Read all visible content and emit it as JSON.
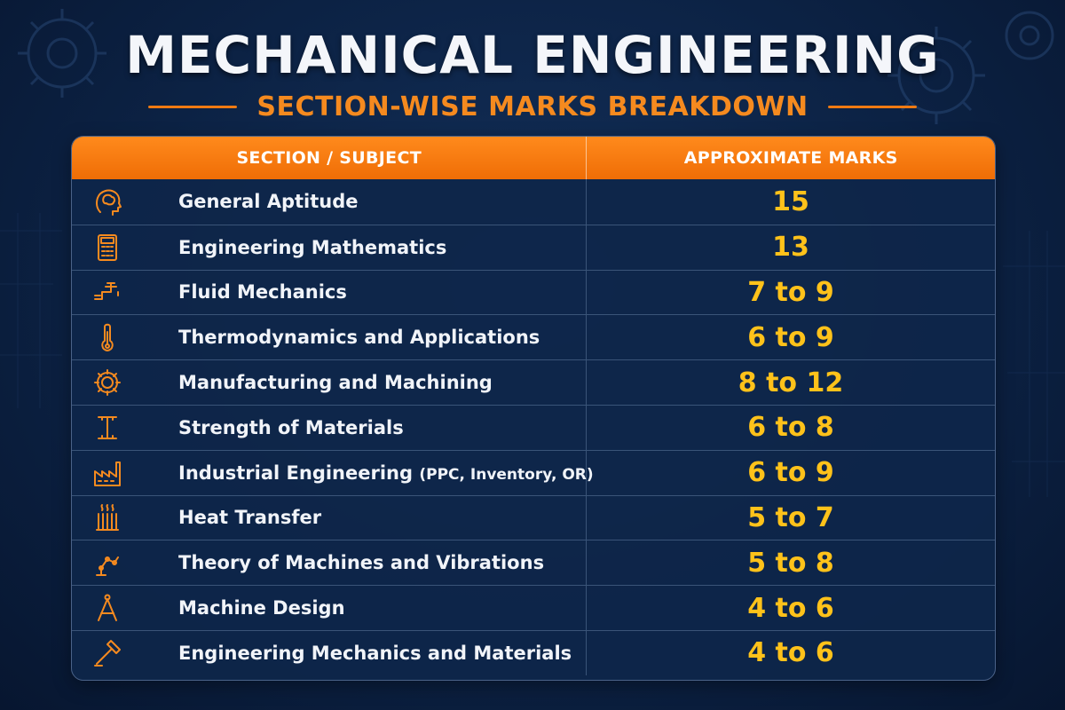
{
  "title": "MECHANICAL ENGINEERING",
  "subtitle": "SECTION-WISE MARKS BREAKDOWN",
  "table": {
    "headers": [
      "SECTION / SUBJECT",
      "APPROXIMATE MARKS"
    ],
    "rows": [
      {
        "icon": "brain-head-icon",
        "subject": "General Aptitude",
        "note": "",
        "marks": "15"
      },
      {
        "icon": "calculator-icon",
        "subject": "Engineering Mathematics",
        "note": "",
        "marks": "13"
      },
      {
        "icon": "pipe-faucet-icon",
        "subject": "Fluid Mechanics",
        "note": "",
        "marks": "7 to 9"
      },
      {
        "icon": "thermometer-icon",
        "subject": "Thermodynamics and Applications",
        "note": "",
        "marks": "6 to 9"
      },
      {
        "icon": "gear-icon",
        "subject": "Manufacturing and Machining",
        "note": "",
        "marks": "8 to 12"
      },
      {
        "icon": "i-beam-icon",
        "subject": "Strength of Materials",
        "note": "",
        "marks": "6 to 8"
      },
      {
        "icon": "factory-icon",
        "subject": "Industrial Engineering",
        "note": "(PPC, Inventory, OR)",
        "marks": "6 to 9"
      },
      {
        "icon": "radiator-icon",
        "subject": "Heat Transfer",
        "note": "",
        "marks": "5 to 7"
      },
      {
        "icon": "robotic-arm-icon",
        "subject": "Theory of Machines and Vibrations",
        "note": "",
        "marks": "5 to 8"
      },
      {
        "icon": "compass-icon",
        "subject": "Machine Design",
        "note": "",
        "marks": "4 to 6"
      },
      {
        "icon": "hammer-icon",
        "subject": "Engineering Mechanics and Materials",
        "note": "",
        "marks": "4 to 6"
      }
    ]
  },
  "colors": {
    "accent": "#f58a1f",
    "header_bg": "#ef6d06",
    "marks": "#ffc21a",
    "background": "#0c2244"
  }
}
